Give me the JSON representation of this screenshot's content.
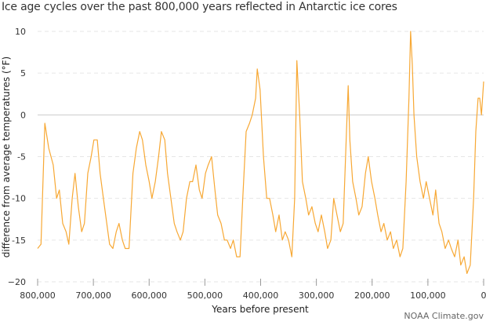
{
  "chart_data": {
    "type": "line",
    "title": "Ice age cycles over the past 800,000 years reflected in Antarctic ice cores",
    "xlabel": "Years before present",
    "ylabel": "difference from average temperatures (°F)",
    "xlim": [
      800000,
      0
    ],
    "ylim": [
      -20,
      10
    ],
    "xticks": [
      800000,
      700000,
      600000,
      500000,
      400000,
      300000,
      200000,
      100000,
      0
    ],
    "xtick_labels": [
      "800,000",
      "700,000",
      "600,000",
      "500,000",
      "400,000",
      "300,000",
      "200,000",
      "100,000",
      "0"
    ],
    "yticks": [
      10,
      5,
      0,
      -5,
      -10,
      -15,
      -20
    ],
    "ytick_labels": [
      "10",
      "5",
      "0",
      "-5",
      "-10",
      "-15",
      "−20"
    ],
    "grid": "horizontal dashed",
    "line_color": "#f7a834",
    "x": [
      800000,
      794000,
      787000,
      780000,
      772000,
      766000,
      761000,
      755000,
      749000,
      744000,
      738000,
      733000,
      727000,
      721000,
      716000,
      710000,
      704000,
      699000,
      693000,
      688000,
      682000,
      676000,
      671000,
      665000,
      659000,
      654000,
      648000,
      643000,
      636000,
      629000,
      623000,
      617000,
      612000,
      606000,
      600000,
      595000,
      589000,
      583000,
      578000,
      572000,
      567000,
      561000,
      555000,
      550000,
      544000,
      539000,
      533000,
      527000,
      522000,
      516000,
      510000,
      505000,
      499000,
      494000,
      488000,
      482000,
      477000,
      471000,
      465000,
      460000,
      454000,
      449000,
      443000,
      437000,
      432000,
      426000,
      420000,
      415000,
      409000,
      406000,
      401000,
      395000,
      389000,
      384000,
      378000,
      373000,
      367000,
      361000,
      356000,
      350000,
      344000,
      339000,
      335000,
      330000,
      325000,
      319000,
      314000,
      308000,
      302000,
      297000,
      291000,
      285000,
      280000,
      274000,
      269000,
      263000,
      257000,
      252000,
      246000,
      243000,
      240000,
      235000,
      229000,
      224000,
      218000,
      212000,
      207000,
      201000,
      195000,
      190000,
      184000,
      179000,
      173000,
      167000,
      162000,
      156000,
      150000,
      145000,
      139000,
      134000,
      131000,
      128000,
      125000,
      120000,
      114000,
      108000,
      103000,
      97000,
      91000,
      86000,
      80000,
      75000,
      69000,
      63000,
      58000,
      52000,
      46000,
      41000,
      35000,
      30000,
      24000,
      18000,
      14000,
      10000,
      7000,
      4000,
      0
    ],
    "y": [
      -16,
      -15.5,
      -1,
      -4,
      -6,
      -10,
      -9,
      -13,
      -14,
      -15.5,
      -10,
      -7,
      -11,
      -14,
      -13,
      -7,
      -5,
      -3,
      -3,
      -7,
      -10,
      -13,
      -15.5,
      -16,
      -14,
      -13,
      -15,
      -16,
      -16,
      -7,
      -4,
      -2,
      -3,
      -6,
      -8,
      -10,
      -8,
      -5,
      -2,
      -3,
      -7,
      -10,
      -13,
      -14,
      -15,
      -14,
      -10,
      -8,
      -8,
      -6,
      -9,
      -10,
      -7,
      -6,
      -5,
      -9,
      -12,
      -13,
      -15,
      -15,
      -16,
      -15,
      -17,
      -17,
      -10,
      -2,
      -1,
      0,
      2,
      5.5,
      3,
      -5,
      -10,
      -10,
      -12,
      -14,
      -12,
      -15,
      -14,
      -15,
      -17,
      -10,
      6.5,
      0,
      -8,
      -10,
      -12,
      -11,
      -13,
      -14,
      -12,
      -14,
      -16,
      -15,
      -10,
      -12,
      -14,
      -13,
      -2,
      3.5,
      -3,
      -8,
      -10,
      -12,
      -11,
      -7,
      -5,
      -8,
      -10,
      -12,
      -14,
      -13,
      -15,
      -14,
      -16,
      -15,
      -17,
      -16,
      -8,
      2,
      10,
      6,
      0,
      -5,
      -8,
      -10,
      -8,
      -10,
      -12,
      -9,
      -13,
      -14,
      -16,
      -15,
      -16,
      -17,
      -15,
      -18,
      -17,
      -19,
      -18,
      -10,
      -2,
      2,
      2,
      0,
      4
    ]
  },
  "credit": "NOAA Climate.gov"
}
